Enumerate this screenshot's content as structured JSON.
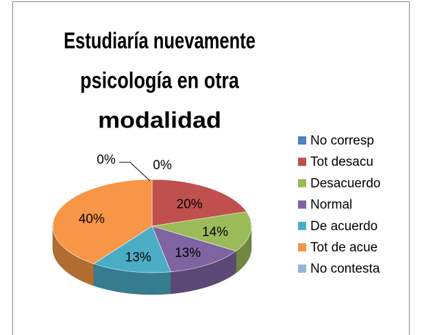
{
  "chart_data": {
    "type": "pie3d",
    "title": [
      "Estudiaría nuevamente",
      "psicología en otra",
      "modalidad"
    ],
    "categories": [
      "No corresp",
      "Tot desacu",
      "Desacuerdo",
      "Normal",
      "De acuerdo",
      "Tot de acue",
      "No contesta"
    ],
    "values": [
      0,
      20,
      14,
      13,
      13,
      40,
      0
    ],
    "value_labels": [
      "0%",
      "20%",
      "14%",
      "13%",
      "13%",
      "40%",
      "0%"
    ],
    "colors": [
      "#4f81bd",
      "#c0504d",
      "#9bbb59",
      "#8064a2",
      "#4bacc6",
      "#f79646",
      "#95b3d7"
    ],
    "legend": "right"
  }
}
